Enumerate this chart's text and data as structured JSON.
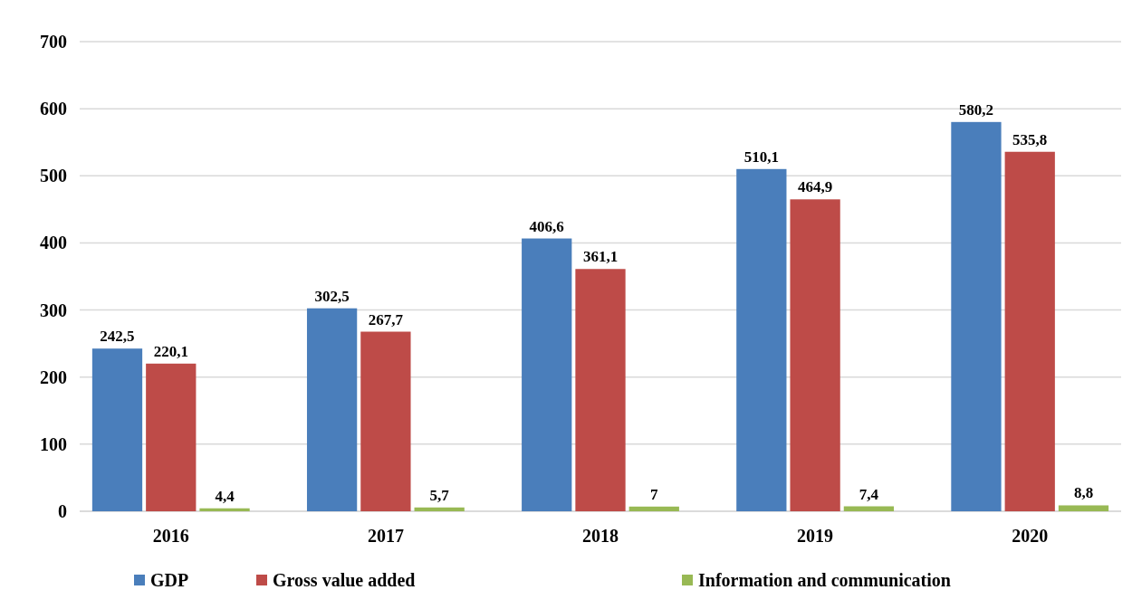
{
  "chart_data": {
    "type": "bar",
    "categories": [
      "2016",
      "2017",
      "2018",
      "2019",
      "2020"
    ],
    "series": [
      {
        "name": "GDP",
        "color": "#4a7ebb",
        "values": [
          242.5,
          302.5,
          406.6,
          510.1,
          580.2
        ]
      },
      {
        "name": "Gross value added",
        "color": "#be4b48",
        "values": [
          220.1,
          267.7,
          361.1,
          464.9,
          535.8
        ]
      },
      {
        "name": "Information and communication",
        "color": "#98b954",
        "values": [
          4.4,
          5.7,
          7,
          7.4,
          8.8
        ]
      }
    ],
    "ylim": [
      0,
      700
    ],
    "yticks": [
      0,
      100,
      200,
      300,
      400,
      500,
      600,
      700
    ],
    "grid": "y",
    "legend": "bottom",
    "value_labels": [
      [
        "242,5",
        "302,5",
        "406,6",
        "510,1",
        "580,2"
      ],
      [
        "220,1",
        "267,7",
        "361,1",
        "464,9",
        "535,8"
      ],
      [
        "4,4",
        "5,7",
        "7",
        "7,4",
        "8,8"
      ]
    ]
  }
}
